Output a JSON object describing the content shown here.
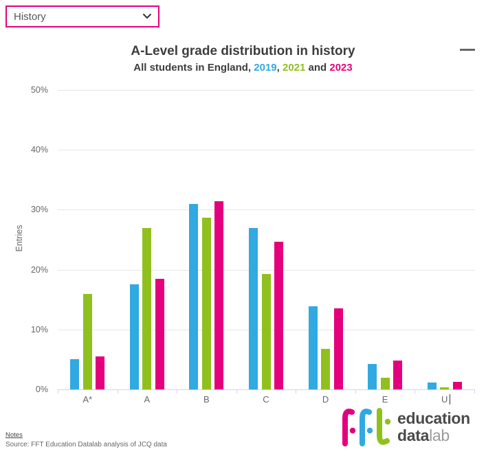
{
  "dropdown": {
    "value": "History"
  },
  "header": {
    "title": "A-Level grade distribution in history",
    "subtitle_prefix": "All students in England, ",
    "sep1": ", ",
    "sep2": " and ",
    "years": [
      {
        "label": "2019",
        "color": "#31a9e1"
      },
      {
        "label": "2021",
        "color": "#90c01e"
      },
      {
        "label": "2023",
        "color": "#e4007c"
      }
    ]
  },
  "colors": {
    "accent_pink": "#e4007c",
    "axis_line": "#ccd6eb",
    "gridline": "#e6e6e6",
    "text_gray": "#666666"
  },
  "chart_data": {
    "type": "bar",
    "title": "A-Level grade distribution in history",
    "subtitle": "All students in England, 2019, 2021 and 2023",
    "categories": [
      "A*",
      "A",
      "B",
      "C",
      "D",
      "E",
      "U"
    ],
    "series": [
      {
        "name": "2019",
        "color": "#31a9e1",
        "values": [
          5.0,
          17.5,
          31.0,
          27.0,
          13.9,
          4.3,
          1.1
        ]
      },
      {
        "name": "2021",
        "color": "#90c01e",
        "values": [
          16.0,
          26.9,
          28.7,
          19.3,
          6.8,
          2.0,
          0.4
        ]
      },
      {
        "name": "2023",
        "color": "#e4007c",
        "values": [
          5.5,
          18.5,
          31.4,
          24.7,
          13.5,
          4.8,
          1.3
        ]
      }
    ],
    "xlabel": "",
    "ylabel": "Entries",
    "ylim": [
      0,
      50
    ],
    "yticks": [
      0,
      10,
      20,
      30,
      40,
      50
    ],
    "ytick_suffix": "%",
    "grid": true,
    "legend_position": "none"
  },
  "footer": {
    "notes_label": "Notes",
    "source": "Source: FFT Education Datalab analysis of JCQ data"
  },
  "logo": {
    "mark": "fft",
    "line1": "education",
    "line2_bold": "data",
    "line2_light": "lab"
  }
}
